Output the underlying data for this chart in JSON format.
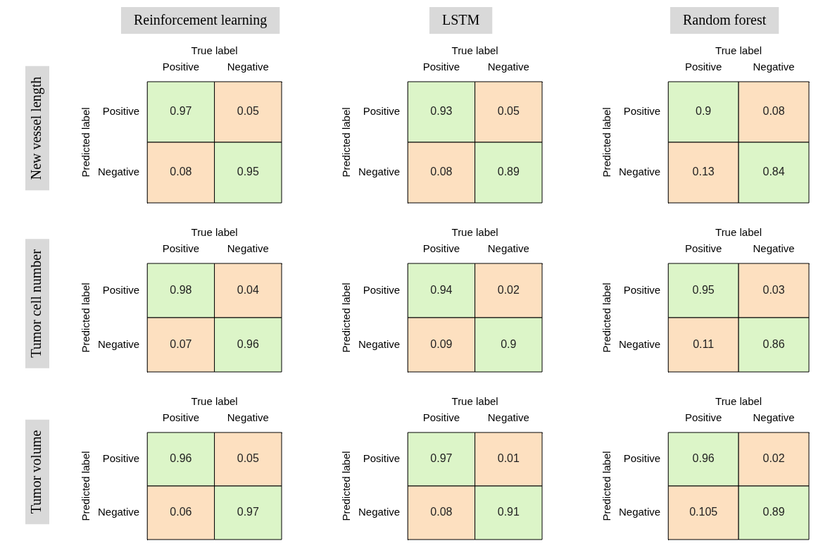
{
  "chart_data": [
    {
      "type": "heatmap",
      "title": "Reinforcement learning",
      "annotations": [
        "New vessel length"
      ],
      "xlabel": "True label",
      "ylabel": "Predicted label",
      "categories": [
        "Positive",
        "Negative"
      ],
      "y_categories": [
        "Positive",
        "Negative"
      ],
      "cells": [
        [
          0.97,
          0.05
        ],
        [
          0.08,
          0.95
        ]
      ],
      "colors": [
        [
          "#dcf5c8",
          "#fde0c0"
        ],
        [
          "#fde0c0",
          "#dcf5c8"
        ]
      ],
      "data_labels": true
    },
    {
      "type": "heatmap",
      "title": "LSTM",
      "xlabel": "True label",
      "ylabel": "Predicted label",
      "categories": [
        "Positive",
        "Negative"
      ],
      "y_categories": [
        "Positive",
        "Negative"
      ],
      "cells": [
        [
          0.93,
          0.05
        ],
        [
          0.08,
          0.89
        ]
      ],
      "colors": [
        [
          "#dcf5c8",
          "#fde0c0"
        ],
        [
          "#fde0c0",
          "#dcf5c8"
        ]
      ],
      "data_labels": true
    },
    {
      "type": "heatmap",
      "title": "Random forest",
      "xlabel": "True label",
      "ylabel": "Predicted label",
      "categories": [
        "Positive",
        "Negative"
      ],
      "y_categories": [
        "Positive",
        "Negative"
      ],
      "cells": [
        [
          0.9,
          0.08
        ],
        [
          0.13,
          0.84
        ]
      ],
      "colors": [
        [
          "#dcf5c8",
          "#fde0c0"
        ],
        [
          "#fde0c0",
          "#dcf5c8"
        ]
      ],
      "data_labels": true
    },
    {
      "type": "heatmap",
      "annotations": [
        "Tumor cell number"
      ],
      "xlabel": "True label",
      "ylabel": "Predicted label",
      "categories": [
        "Positive",
        "Negative"
      ],
      "y_categories": [
        "Positive",
        "Negative"
      ],
      "cells": [
        [
          0.98,
          0.04
        ],
        [
          0.07,
          0.96
        ]
      ],
      "colors": [
        [
          "#dcf5c8",
          "#fde0c0"
        ],
        [
          "#fde0c0",
          "#dcf5c8"
        ]
      ],
      "data_labels": true
    },
    {
      "type": "heatmap",
      "xlabel": "True label",
      "ylabel": "Predicted label",
      "categories": [
        "Positive",
        "Negative"
      ],
      "y_categories": [
        "Positive",
        "Negative"
      ],
      "cells": [
        [
          0.94,
          0.02
        ],
        [
          0.09,
          0.9
        ]
      ],
      "colors": [
        [
          "#dcf5c8",
          "#fde0c0"
        ],
        [
          "#fde0c0",
          "#dcf5c8"
        ]
      ],
      "data_labels": true
    },
    {
      "type": "heatmap",
      "xlabel": "True label",
      "ylabel": "Predicted label",
      "categories": [
        "Positive",
        "Negative"
      ],
      "y_categories": [
        "Positive",
        "Negative"
      ],
      "cells": [
        [
          0.95,
          0.03
        ],
        [
          0.11,
          0.86
        ]
      ],
      "colors": [
        [
          "#dcf5c8",
          "#fde0c0"
        ],
        [
          "#fde0c0",
          "#dcf5c8"
        ]
      ],
      "data_labels": true
    },
    {
      "type": "heatmap",
      "annotations": [
        "Tumor volume"
      ],
      "xlabel": "True label",
      "ylabel": "Predicted label",
      "categories": [
        "Positive",
        "Negative"
      ],
      "y_categories": [
        "Positive",
        "Negative"
      ],
      "cells": [
        [
          0.96,
          0.05
        ],
        [
          0.06,
          0.97
        ]
      ],
      "colors": [
        [
          "#dcf5c8",
          "#fde0c0"
        ],
        [
          "#fde0c0",
          "#dcf5c8"
        ]
      ],
      "data_labels": true
    },
    {
      "type": "heatmap",
      "xlabel": "True label",
      "ylabel": "Predicted label",
      "categories": [
        "Positive",
        "Negative"
      ],
      "y_categories": [
        "Positive",
        "Negative"
      ],
      "cells": [
        [
          0.97,
          0.01
        ],
        [
          0.08,
          0.91
        ]
      ],
      "colors": [
        [
          "#dcf5c8",
          "#fde0c0"
        ],
        [
          "#fde0c0",
          "#dcf5c8"
        ]
      ],
      "data_labels": true
    },
    {
      "type": "heatmap",
      "xlabel": "True label",
      "ylabel": "Predicted label",
      "categories": [
        "Positive",
        "Negative"
      ],
      "y_categories": [
        "Positive",
        "Negative"
      ],
      "cells": [
        [
          0.96,
          0.02
        ],
        [
          0.105,
          0.89
        ]
      ],
      "colors": [
        [
          "#dcf5c8",
          "#fde0c0"
        ],
        [
          "#fde0c0",
          "#dcf5c8"
        ]
      ],
      "data_labels": true
    }
  ]
}
